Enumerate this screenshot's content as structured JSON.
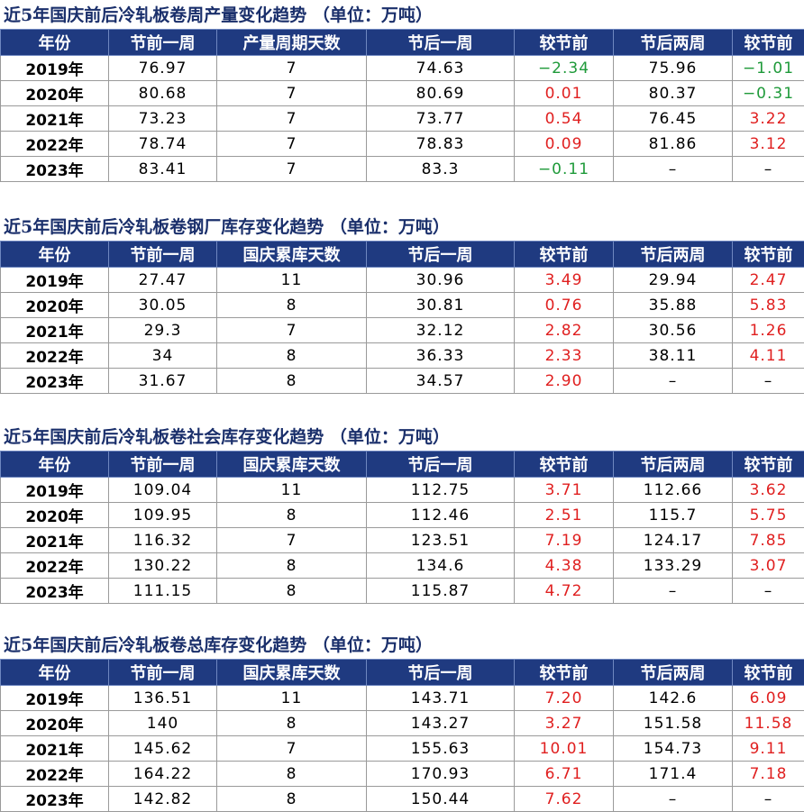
{
  "tables": [
    {
      "title": "近5年国庆前后冷轧板卷周产量变化趋势  （单位：万吨）",
      "headers": [
        "年份",
        "节前一周",
        "产量周期天数",
        "节后一周",
        "较节前",
        "节后两周",
        "较节前"
      ],
      "rows": [
        [
          "2019年",
          "76.97",
          "7",
          "74.63",
          "−2.34",
          "75.96",
          "−1.01"
        ],
        [
          "2020年",
          "80.68",
          "7",
          "80.69",
          "0.01",
          "80.37",
          "−0.31"
        ],
        [
          "2021年",
          "73.23",
          "7",
          "73.77",
          "0.54",
          "76.45",
          "3.22"
        ],
        [
          "2022年",
          "78.74",
          "7",
          "78.83",
          "0.09",
          "81.86",
          "3.12"
        ],
        [
          "2023年",
          "83.41",
          "7",
          "83.3",
          "−0.11",
          "–",
          "–"
        ]
      ]
    },
    {
      "title": "近5年国庆前后冷轧板卷钢厂库存变化趋势  （单位：万吨）",
      "headers": [
        "年份",
        "节前一周",
        "国庆累库天数",
        "节后一周",
        "较节前",
        "节后两周",
        "较节前"
      ],
      "rows": [
        [
          "2019年",
          "27.47",
          "11",
          "30.96",
          "3.49",
          "29.94",
          "2.47"
        ],
        [
          "2020年",
          "30.05",
          "8",
          "30.81",
          "0.76",
          "35.88",
          "5.83"
        ],
        [
          "2021年",
          "29.3",
          "7",
          "32.12",
          "2.82",
          "30.56",
          "1.26"
        ],
        [
          "2022年",
          "34",
          "8",
          "36.33",
          "2.33",
          "38.11",
          "4.11"
        ],
        [
          "2023年",
          "31.67",
          "8",
          "34.57",
          "2.90",
          "–",
          "–"
        ]
      ]
    },
    {
      "title": "近5年国庆前后冷轧板卷社会库存变化趋势  （单位：万吨）",
      "headers": [
        "年份",
        "节前一周",
        "国庆累库天数",
        "节后一周",
        "较节前",
        "节后两周",
        "较节前"
      ],
      "rows": [
        [
          "2019年",
          "109.04",
          "11",
          "112.75",
          "3.71",
          "112.66",
          "3.62"
        ],
        [
          "2020年",
          "109.95",
          "8",
          "112.46",
          "2.51",
          "115.7",
          "5.75"
        ],
        [
          "2021年",
          "116.32",
          "7",
          "123.51",
          "7.19",
          "124.17",
          "7.85"
        ],
        [
          "2022年",
          "130.22",
          "8",
          "134.6",
          "4.38",
          "133.29",
          "3.07"
        ],
        [
          "2023年",
          "111.15",
          "8",
          "115.87",
          "4.72",
          "–",
          "–"
        ]
      ]
    },
    {
      "title": "近5年国庆前后冷轧板卷总库存变化趋势  （单位：万吨）",
      "headers": [
        "年份",
        "节前一周",
        "国庆累库天数",
        "节后一周",
        "较节前",
        "节后两周",
        "较节前"
      ],
      "rows": [
        [
          "2019年",
          "136.51",
          "11",
          "143.71",
          "7.20",
          "142.6",
          "6.09"
        ],
        [
          "2020年",
          "140",
          "8",
          "143.27",
          "3.27",
          "151.58",
          "11.58"
        ],
        [
          "2021年",
          "145.62",
          "7",
          "155.63",
          "10.01",
          "154.73",
          "9.11"
        ],
        [
          "2022年",
          "164.22",
          "8",
          "170.93",
          "6.71",
          "171.4",
          "7.18"
        ],
        [
          "2023年",
          "142.82",
          "8",
          "150.44",
          "7.62",
          "–",
          "–"
        ]
      ]
    }
  ],
  "colors": {
    "header_bg": "#1f3a80",
    "title": "#1a2f6b",
    "positive": "#e02020",
    "negative": "#1f9a3a"
  }
}
